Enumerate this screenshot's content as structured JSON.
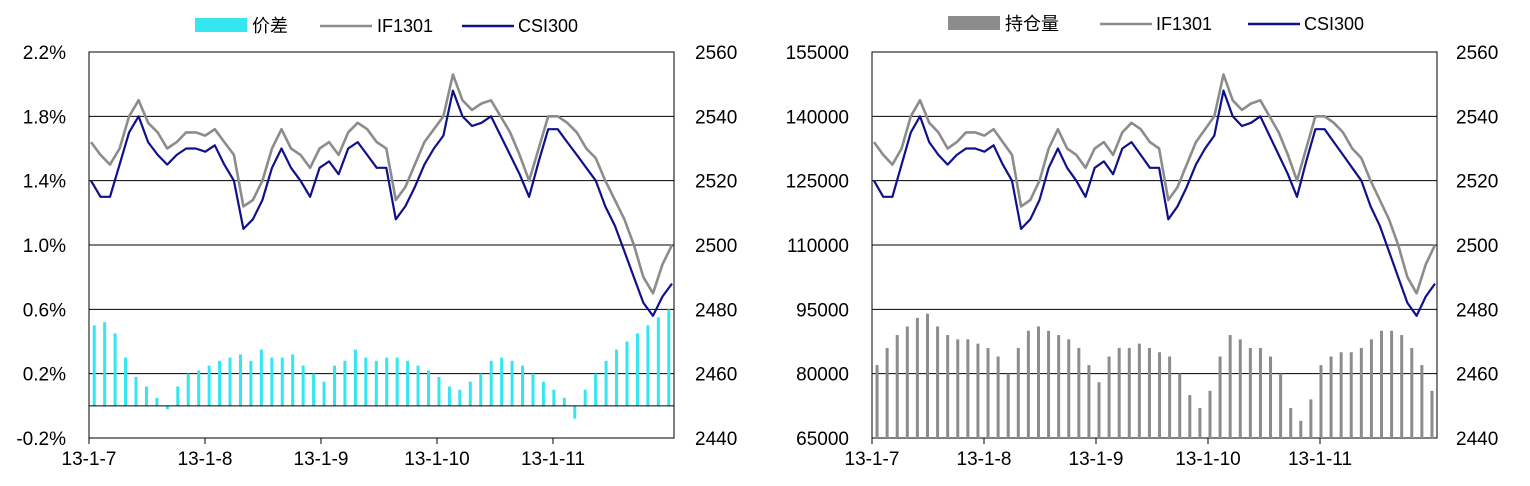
{
  "chart_data": [
    {
      "type": "line",
      "x_tick_labels": [
        "13-1-7",
        "13-1-8",
        "13-1-9",
        "13-1-10",
        "13-1-11"
      ],
      "y_left": {
        "ticks": [
          "-0.2%",
          "0.2%",
          "0.6%",
          "1.0%",
          "1.4%",
          "1.8%",
          "2.2%"
        ],
        "range": [
          -0.2,
          2.2
        ]
      },
      "y_right": {
        "ticks": [
          "2440",
          "2460",
          "2480",
          "2500",
          "2520",
          "2540",
          "2560"
        ],
        "range": [
          2440,
          2560
        ]
      },
      "legend": [
        "价差",
        "IF1301",
        "CSI300"
      ],
      "colors": {
        "bars": "#33e6f0",
        "IF1301": "#8c8c8c",
        "CSI300": "#10108a"
      },
      "series": [
        {
          "name": "价差",
          "axis": "left",
          "kind": "bar",
          "values": [
            0.5,
            0.52,
            0.45,
            0.3,
            0.18,
            0.12,
            0.05,
            -0.02,
            0.12,
            0.2,
            0.22,
            0.25,
            0.28,
            0.3,
            0.32,
            0.28,
            0.35,
            0.3,
            0.3,
            0.32,
            0.25,
            0.2,
            0.15,
            0.25,
            0.28,
            0.35,
            0.3,
            0.28,
            0.3,
            0.3,
            0.28,
            0.25,
            0.22,
            0.18,
            0.12,
            0.1,
            0.15,
            0.2,
            0.28,
            0.3,
            0.28,
            0.25,
            0.2,
            0.15,
            0.1,
            0.05,
            -0.08,
            0.1,
            0.2,
            0.28,
            0.35,
            0.4,
            0.45,
            0.5,
            0.55,
            0.6
          ]
        },
        {
          "name": "IF1301",
          "axis": "right",
          "kind": "line",
          "values": [
            2532,
            2528,
            2525,
            2530,
            2540,
            2545,
            2538,
            2535,
            2530,
            2532,
            2535,
            2535,
            2534,
            2536,
            2532,
            2528,
            2512,
            2514,
            2520,
            2530,
            2536,
            2530,
            2528,
            2524,
            2530,
            2532,
            2528,
            2535,
            2538,
            2536,
            2532,
            2530,
            2514,
            2518,
            2525,
            2532,
            2536,
            2540,
            2553,
            2545,
            2542,
            2544,
            2545,
            2540,
            2535,
            2528,
            2520,
            2530,
            2540,
            2540,
            2538,
            2535,
            2530,
            2527,
            2520,
            2514,
            2508,
            2500,
            2490,
            2485,
            2494,
            2500
          ]
        },
        {
          "name": "CSI300",
          "axis": "right",
          "kind": "line",
          "values": [
            2520,
            2515,
            2515,
            2525,
            2535,
            2540,
            2532,
            2528,
            2525,
            2528,
            2530,
            2530,
            2529,
            2531,
            2525,
            2520,
            2505,
            2508,
            2514,
            2524,
            2530,
            2524,
            2520,
            2515,
            2524,
            2526,
            2522,
            2530,
            2532,
            2528,
            2524,
            2524,
            2508,
            2512,
            2518,
            2525,
            2530,
            2534,
            2548,
            2540,
            2537,
            2538,
            2540,
            2534,
            2528,
            2522,
            2515,
            2526,
            2536,
            2536,
            2532,
            2528,
            2524,
            2520,
            2512,
            2506,
            2498,
            2490,
            2482,
            2478,
            2484,
            2488
          ]
        }
      ]
    },
    {
      "type": "line",
      "x_tick_labels": [
        "13-1-7",
        "13-1-8",
        "13-1-9",
        "13-1-10",
        "13-1-11"
      ],
      "y_left": {
        "ticks": [
          "65000",
          "80000",
          "95000",
          "110000",
          "125000",
          "140000",
          "155000"
        ],
        "range": [
          65000,
          155000
        ]
      },
      "y_right": {
        "ticks": [
          "2440",
          "2460",
          "2480",
          "2500",
          "2520",
          "2540",
          "2560"
        ],
        "range": [
          2440,
          2560
        ]
      },
      "legend": [
        "持仓量",
        "IF1301",
        "CSI300"
      ],
      "colors": {
        "bars": "#8c8c8c",
        "IF1301": "#8c8c8c",
        "CSI300": "#10108a"
      },
      "series": [
        {
          "name": "持仓量",
          "axis": "left",
          "kind": "bar",
          "values": [
            82000,
            86000,
            89000,
            91000,
            93000,
            94000,
            91000,
            89000,
            88000,
            88000,
            87000,
            86000,
            84000,
            80000,
            86000,
            90000,
            91000,
            90000,
            89000,
            88000,
            86000,
            82000,
            78000,
            84000,
            86000,
            86000,
            87000,
            86000,
            85000,
            84000,
            80000,
            75000,
            72000,
            76000,
            84000,
            89000,
            88000,
            86000,
            86000,
            84000,
            80000,
            72000,
            69000,
            74000,
            82000,
            84000,
            85000,
            85000,
            86000,
            88000,
            90000,
            90000,
            89000,
            86000,
            82000,
            76000
          ]
        },
        {
          "name": "IF1301",
          "axis": "right",
          "kind": "line",
          "values": [
            2532,
            2528,
            2525,
            2530,
            2540,
            2545,
            2538,
            2535,
            2530,
            2532,
            2535,
            2535,
            2534,
            2536,
            2532,
            2528,
            2512,
            2514,
            2520,
            2530,
            2536,
            2530,
            2528,
            2524,
            2530,
            2532,
            2528,
            2535,
            2538,
            2536,
            2532,
            2530,
            2514,
            2518,
            2525,
            2532,
            2536,
            2540,
            2553,
            2545,
            2542,
            2544,
            2545,
            2540,
            2535,
            2528,
            2520,
            2530,
            2540,
            2540,
            2538,
            2535,
            2530,
            2527,
            2520,
            2514,
            2508,
            2500,
            2490,
            2485,
            2494,
            2500
          ]
        },
        {
          "name": "CSI300",
          "axis": "right",
          "kind": "line",
          "values": [
            2520,
            2515,
            2515,
            2525,
            2535,
            2540,
            2532,
            2528,
            2525,
            2528,
            2530,
            2530,
            2529,
            2531,
            2525,
            2520,
            2505,
            2508,
            2514,
            2524,
            2530,
            2524,
            2520,
            2515,
            2524,
            2526,
            2522,
            2530,
            2532,
            2528,
            2524,
            2524,
            2508,
            2512,
            2518,
            2525,
            2530,
            2534,
            2548,
            2540,
            2537,
            2538,
            2540,
            2534,
            2528,
            2522,
            2515,
            2526,
            2536,
            2536,
            2532,
            2528,
            2524,
            2520,
            2512,
            2506,
            2498,
            2490,
            2482,
            2478,
            2484,
            2488
          ]
        }
      ]
    }
  ]
}
